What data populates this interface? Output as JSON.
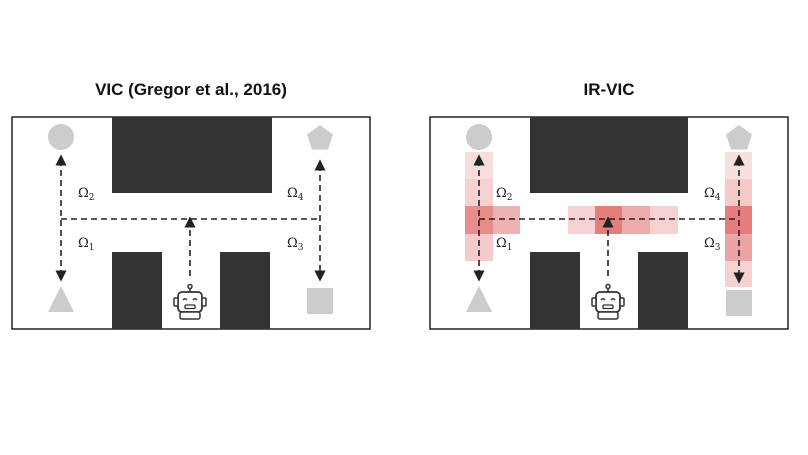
{
  "panels": {
    "left": {
      "title": "VIC (Gregor et al., 2016)"
    },
    "right": {
      "title": "IR-VIC"
    }
  },
  "options": [
    {
      "symbol": "Ω",
      "index": "1"
    },
    {
      "symbol": "Ω",
      "index": "2"
    },
    {
      "symbol": "Ω",
      "index": "3"
    },
    {
      "symbol": "Ω",
      "index": "4"
    }
  ],
  "colors": {
    "wall": "#333333",
    "goal_shape": "#cccccc",
    "heat": "#e06666",
    "path": "#222222"
  },
  "icons": [
    "circle-goal-icon",
    "pentagon-goal-icon",
    "triangle-goal-icon",
    "square-goal-icon",
    "robot-icon"
  ]
}
